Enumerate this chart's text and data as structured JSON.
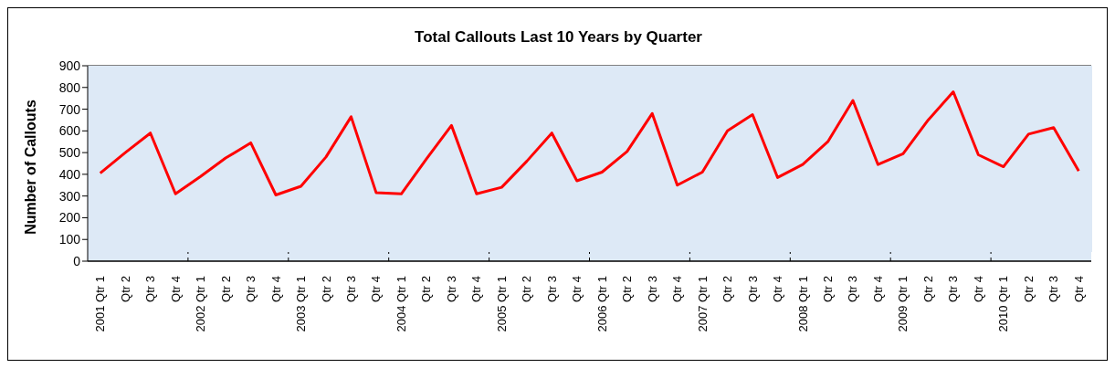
{
  "chart_data": {
    "type": "line",
    "title": "Total Callouts Last 10 Years by Quarter",
    "ylabel": "Number of Callouts",
    "categories": [
      "2001 Qtr 1",
      "Qtr 2",
      "Qtr 3",
      "Qtr 4",
      "2002 Qtr 1",
      "Qtr 2",
      "Qtr 3",
      "Qtr 4",
      "2003 Qtr 1",
      "Qtr 2",
      "Qtr 3",
      "Qtr 4",
      "2004 Qtr 1",
      "Qtr 2",
      "Qtr 3",
      "Qtr 4",
      "2005 Qtr 1",
      "Qtr 2",
      "Qtr 3",
      "Qtr 4",
      "2006 Qtr 1",
      "Qtr 2",
      "Qtr 3",
      "Qtr 4",
      "2007 Qtr 1",
      "Qtr 2",
      "Qtr 3",
      "Qtr 4",
      "2008 Qtr 1",
      "Qtr 2",
      "Qtr 3",
      "Qtr 4",
      "2009 Qtr 1",
      "Qtr 2",
      "Qtr 3",
      "Qtr 4",
      "2010 Qtr 1",
      "Qtr 2",
      "Qtr 3",
      "Qtr 4"
    ],
    "series": [
      {
        "color": "#ff0000",
        "values": [
          405,
          500,
          590,
          310,
          390,
          475,
          545,
          305,
          345,
          480,
          665,
          315,
          310,
          470,
          625,
          310,
          340,
          460,
          590,
          370,
          410,
          505,
          680,
          350,
          410,
          600,
          675,
          385,
          445,
          550,
          740,
          445,
          495,
          650,
          780,
          490,
          435,
          585,
          615,
          415
        ]
      }
    ],
    "ylim": [
      0,
      900
    ],
    "yticks": [
      0,
      100,
      200,
      300,
      400,
      500,
      600,
      700,
      800,
      900
    ],
    "grid": true,
    "marker": "none",
    "line_style": "solid"
  }
}
